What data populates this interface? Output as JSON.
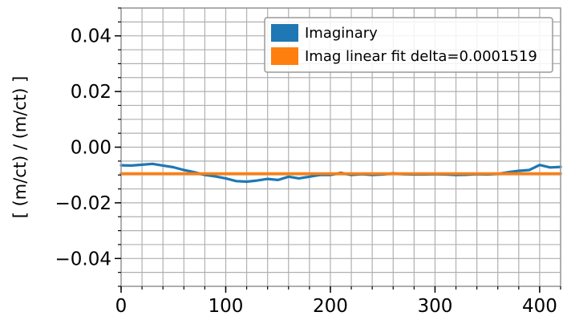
{
  "chart_data": {
    "type": "line",
    "title": "",
    "xlabel": "",
    "ylabel": "[ (m/ct) / (m/ct) ]",
    "xlim": [
      0,
      420
    ],
    "ylim": [
      -0.05,
      0.05
    ],
    "xticks": [
      0,
      100,
      200,
      300,
      400
    ],
    "xtick_labels": [
      "0",
      "100",
      "200",
      "300",
      "400"
    ],
    "yticks": [
      -0.04,
      -0.02,
      0.0,
      0.02,
      0.04
    ],
    "ytick_labels": [
      "−0.04",
      "−0.02",
      "0.00",
      "0.02",
      "0.04"
    ],
    "grid": true,
    "minor_grid": true,
    "legend_position": "top-right",
    "series": [
      {
        "name": "Imaginary",
        "color": "#1f77b4",
        "x": [
          0,
          10,
          20,
          30,
          40,
          50,
          60,
          70,
          80,
          90,
          100,
          110,
          120,
          130,
          140,
          150,
          160,
          170,
          180,
          190,
          200,
          210,
          220,
          230,
          240,
          250,
          260,
          270,
          280,
          290,
          300,
          310,
          320,
          330,
          340,
          350,
          360,
          370,
          380,
          390,
          400,
          410,
          420
        ],
        "y": [
          -0.0065,
          -0.0066,
          -0.0063,
          -0.006,
          -0.0066,
          -0.0072,
          -0.0082,
          -0.009,
          -0.01,
          -0.0105,
          -0.0112,
          -0.0122,
          -0.0124,
          -0.012,
          -0.0114,
          -0.0118,
          -0.0106,
          -0.0112,
          -0.0106,
          -0.01,
          -0.01,
          -0.0092,
          -0.01,
          -0.0097,
          -0.01,
          -0.0098,
          -0.0094,
          -0.0097,
          -0.0098,
          -0.0098,
          -0.0097,
          -0.0098,
          -0.01,
          -0.0099,
          -0.0097,
          -0.0098,
          -0.0096,
          -0.009,
          -0.0085,
          -0.0082,
          -0.0064,
          -0.0073,
          -0.0071
        ]
      },
      {
        "name": "Imag linear fit delta=0.0001519",
        "color": "#ff7f0e",
        "x": [
          0,
          420
        ],
        "y": [
          -0.0095,
          -0.0095
        ]
      }
    ]
  }
}
